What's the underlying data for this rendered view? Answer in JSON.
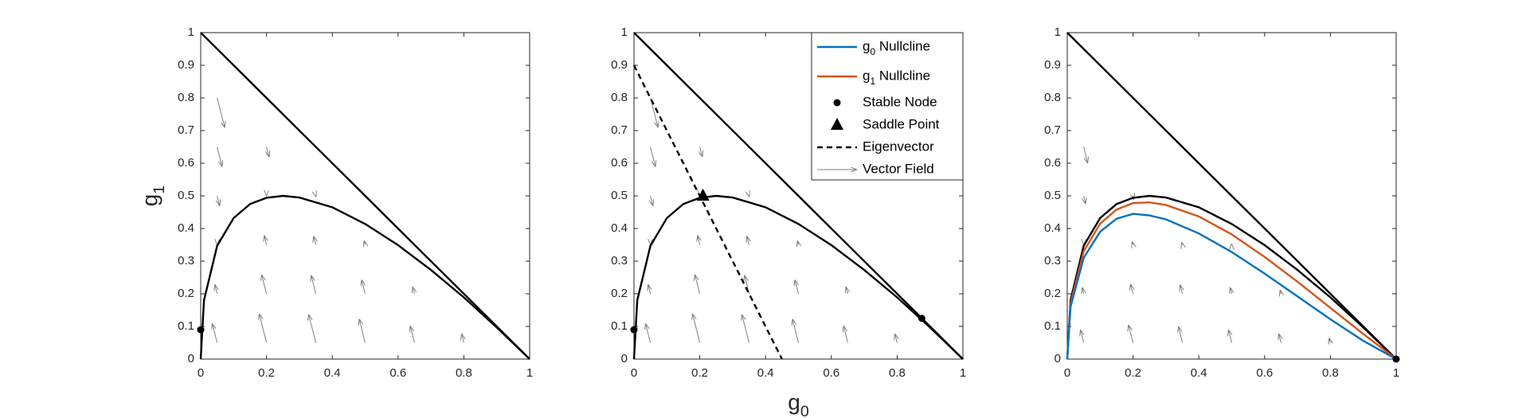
{
  "chart_data": [
    {
      "type": "line",
      "ylabel": "g1",
      "xlim": [
        0,
        1
      ],
      "ylim": [
        0,
        1
      ],
      "xticks": [
        0,
        0.2,
        0.4,
        0.6,
        0.8,
        1
      ],
      "yticks": [
        0,
        0.1,
        0.2,
        0.3,
        0.4,
        0.5,
        0.6,
        0.7,
        0.8,
        0.9,
        1
      ],
      "series": [
        {
          "color": "#000000",
          "style": "solid",
          "x": [
            0,
            1
          ],
          "values": [
            1,
            0
          ]
        },
        {
          "color": "#000000",
          "style": "solid",
          "x": [
            0,
            0.01,
            0.05,
            0.1,
            0.15,
            0.2,
            0.25,
            0.3,
            0.4,
            0.5,
            0.6,
            0.7,
            0.8,
            0.9,
            1
          ],
          "values": [
            0,
            0.18,
            0.347,
            0.432,
            0.475,
            0.494,
            0.5,
            0.495,
            0.465,
            0.414,
            0.349,
            0.273,
            0.189,
            0.097,
            0
          ]
        },
        {
          "color": "#000000",
          "marker": "circle",
          "x": [
            0
          ],
          "values": [
            0.09
          ]
        }
      ],
      "quiver": {
        "color": "#808080",
        "x": [
          0.05,
          0.05,
          0.05,
          0.05,
          0.05,
          0.05,
          0.2,
          0.2,
          0.2,
          0.2,
          0.2,
          0.35,
          0.35,
          0.35,
          0.35,
          0.5,
          0.5,
          0.5,
          0.65,
          0.65,
          0.8
        ],
        "y": [
          0.05,
          0.2,
          0.35,
          0.5,
          0.65,
          0.8,
          0.05,
          0.2,
          0.35,
          0.5,
          0.65,
          0.05,
          0.2,
          0.35,
          0.5,
          0.05,
          0.2,
          0.35,
          0.05,
          0.2,
          0.05
        ],
        "u": [
          -0.015,
          -0.007,
          0,
          0.008,
          0.015,
          0.023,
          -0.022,
          -0.015,
          -0.007,
          0,
          0.008,
          -0.022,
          -0.014,
          -0.007,
          0.001,
          -0.018,
          -0.011,
          -0.003,
          -0.013,
          -0.006,
          -0.007
        ],
        "v": [
          0.059,
          0.029,
          -0.001,
          -0.031,
          -0.061,
          -0.091,
          0.089,
          0.059,
          0.029,
          -0.001,
          -0.031,
          0.087,
          0.057,
          0.027,
          -0.003,
          0.073,
          0.043,
          0.013,
          0.052,
          0.022,
          0.028
        ]
      }
    },
    {
      "type": "line",
      "xlabel": "g0",
      "xlim": [
        0,
        1
      ],
      "ylim": [
        0,
        1
      ],
      "xticks": [
        0,
        0.2,
        0.4,
        0.6,
        0.8,
        1
      ],
      "yticks": [
        0,
        0.1,
        0.2,
        0.3,
        0.4,
        0.5,
        0.6,
        0.7,
        0.8,
        0.9,
        1
      ],
      "series": [
        {
          "color": "#000000",
          "style": "solid",
          "x": [
            0,
            1
          ],
          "values": [
            1,
            0
          ]
        },
        {
          "color": "#000000",
          "style": "solid",
          "x": [
            0,
            0.01,
            0.05,
            0.1,
            0.15,
            0.2,
            0.25,
            0.3,
            0.4,
            0.5,
            0.6,
            0.7,
            0.8,
            0.9,
            1
          ],
          "values": [
            0,
            0.18,
            0.347,
            0.432,
            0.475,
            0.494,
            0.5,
            0.495,
            0.465,
            0.414,
            0.349,
            0.273,
            0.189,
            0.097,
            0
          ]
        },
        {
          "color": "#000000",
          "style": "dashed",
          "x": [
            0,
            0.45
          ],
          "values": [
            0.9,
            0
          ]
        },
        {
          "color": "#000000",
          "marker": "circle",
          "x": [
            0,
            0.875
          ],
          "values": [
            0.09,
            0.125
          ]
        },
        {
          "color": "#000000",
          "marker": "triangle",
          "x": [
            0.21
          ],
          "values": [
            0.5
          ]
        }
      ],
      "legend": [
        {
          "name": "g0 Nullcline",
          "color": "#0072bd",
          "style": "solid"
        },
        {
          "name": "g1 Nullcline",
          "color": "#d95319",
          "style": "solid"
        },
        {
          "name": "Stable Node",
          "color": "#000000",
          "style": "circle"
        },
        {
          "name": "Saddle Point",
          "color": "#000000",
          "style": "triangle"
        },
        {
          "name": "Eigenvector",
          "color": "#000000",
          "style": "dashed"
        },
        {
          "name": "Vector Field",
          "color": "#808080",
          "style": "arrow"
        }
      ],
      "quiver": {
        "color": "#808080",
        "x": [
          0.05,
          0.05,
          0.05,
          0.05,
          0.05,
          0.05,
          0.2,
          0.2,
          0.2,
          0.2,
          0.2,
          0.35,
          0.35,
          0.35,
          0.35,
          0.5,
          0.5,
          0.5,
          0.65,
          0.65,
          0.8
        ],
        "y": [
          0.05,
          0.2,
          0.35,
          0.5,
          0.65,
          0.8,
          0.05,
          0.2,
          0.35,
          0.5,
          0.65,
          0.05,
          0.2,
          0.35,
          0.5,
          0.05,
          0.2,
          0.35,
          0.05,
          0.2,
          0.05
        ],
        "u": [
          -0.015,
          -0.007,
          0,
          0.008,
          0.015,
          0.023,
          -0.022,
          -0.015,
          -0.007,
          0,
          0.008,
          -0.022,
          -0.014,
          -0.007,
          0.001,
          -0.018,
          -0.011,
          -0.003,
          -0.013,
          -0.006,
          -0.007
        ],
        "v": [
          0.059,
          0.029,
          -0.001,
          -0.031,
          -0.061,
          -0.091,
          0.089,
          0.059,
          0.029,
          -0.001,
          -0.031,
          0.087,
          0.057,
          0.027,
          -0.003,
          0.073,
          0.043,
          0.013,
          0.052,
          0.022,
          0.028
        ]
      }
    },
    {
      "type": "line",
      "xlim": [
        0,
        1
      ],
      "ylim": [
        0,
        1
      ],
      "xticks": [
        0,
        0.2,
        0.4,
        0.6,
        0.8,
        1
      ],
      "yticks": [
        0,
        0.1,
        0.2,
        0.3,
        0.4,
        0.5,
        0.6,
        0.7,
        0.8,
        0.9,
        1
      ],
      "series": [
        {
          "color": "#000000",
          "style": "solid",
          "x": [
            0,
            1
          ],
          "values": [
            1,
            0
          ]
        },
        {
          "color": "#000000",
          "style": "solid",
          "x": [
            0,
            0.01,
            0.05,
            0.1,
            0.15,
            0.2,
            0.25,
            0.3,
            0.4,
            0.5,
            0.6,
            0.7,
            0.8,
            0.9,
            1
          ],
          "values": [
            0,
            0.18,
            0.347,
            0.432,
            0.475,
            0.494,
            0.5,
            0.495,
            0.465,
            0.414,
            0.349,
            0.273,
            0.189,
            0.097,
            0
          ]
        },
        {
          "color": "#d95319",
          "style": "solid",
          "x": [
            0,
            0.01,
            0.05,
            0.1,
            0.15,
            0.2,
            0.25,
            0.3,
            0.4,
            0.5,
            0.6,
            0.7,
            0.8,
            0.9,
            1
          ],
          "values": [
            0,
            0.17,
            0.33,
            0.415,
            0.458,
            0.478,
            0.48,
            0.472,
            0.437,
            0.382,
            0.313,
            0.237,
            0.157,
            0.077,
            0
          ]
        },
        {
          "color": "#0072bd",
          "style": "solid",
          "x": [
            0,
            0.01,
            0.05,
            0.1,
            0.15,
            0.2,
            0.25,
            0.3,
            0.4,
            0.5,
            0.6,
            0.7,
            0.8,
            0.9,
            1
          ],
          "values": [
            0,
            0.16,
            0.31,
            0.39,
            0.43,
            0.445,
            0.44,
            0.428,
            0.385,
            0.328,
            0.262,
            0.192,
            0.122,
            0.056,
            0
          ]
        },
        {
          "color": "#000000",
          "marker": "circle",
          "x": [
            1
          ],
          "values": [
            0
          ]
        }
      ],
      "quiver": {
        "color": "#808080",
        "x": [
          0.05,
          0.05,
          0.05,
          0.05,
          0.05,
          0.2,
          0.2,
          0.2,
          0.2,
          0.35,
          0.35,
          0.35,
          0.5,
          0.5,
          0.5,
          0.65,
          0.65,
          0.8
        ],
        "y": [
          0.05,
          0.2,
          0.35,
          0.5,
          0.65,
          0.05,
          0.2,
          0.35,
          0.5,
          0.05,
          0.2,
          0.35,
          0.05,
          0.2,
          0.35,
          0.05,
          0.2,
          0.05
        ],
        "u": [
          -0.01,
          -0.005,
          0,
          0.006,
          0.012,
          -0.014,
          -0.008,
          -0.003,
          0.003,
          -0.012,
          -0.007,
          -0.002,
          -0.01,
          -0.005,
          0,
          -0.007,
          -0.003,
          -0.004
        ],
        "v": [
          0.04,
          0.02,
          -0.001,
          -0.025,
          -0.05,
          0.055,
          0.03,
          0.01,
          -0.012,
          0.05,
          0.028,
          0.008,
          0.04,
          0.02,
          0.004,
          0.028,
          0.012,
          0.015
        ]
      }
    }
  ]
}
